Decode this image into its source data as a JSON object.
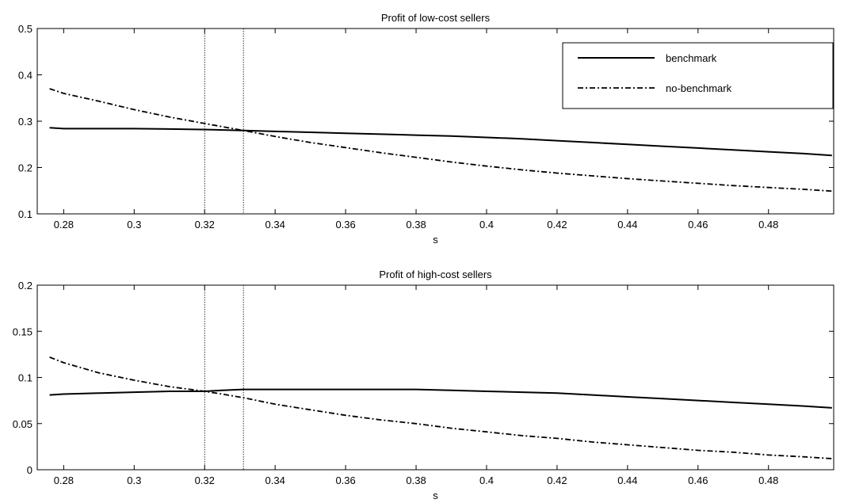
{
  "chart_data": [
    {
      "type": "line",
      "title": "Profit of low-cost sellers",
      "xlabel": "s",
      "ylabel": "",
      "xlim": [
        0.2725,
        0.4985
      ],
      "ylim": [
        0.1,
        0.5
      ],
      "xticks": [
        "0.28",
        "0.3",
        "0.32",
        "0.34",
        "0.36",
        "0.38",
        "0.4",
        "0.42",
        "0.44",
        "0.46",
        "0.48"
      ],
      "yticks": [
        "0.1",
        "0.2",
        "0.3",
        "0.4",
        "0.5"
      ],
      "vlines": [
        0.32,
        0.331
      ],
      "legend": "top-right",
      "series": [
        {
          "name": "benchmark",
          "style": "solid",
          "x": [
            0.276,
            0.28,
            0.29,
            0.3,
            0.31,
            0.32,
            0.331,
            0.34,
            0.35,
            0.36,
            0.37,
            0.38,
            0.39,
            0.4,
            0.41,
            0.42,
            0.43,
            0.44,
            0.45,
            0.46,
            0.47,
            0.48,
            0.49,
            0.498
          ],
          "values": [
            0.286,
            0.284,
            0.284,
            0.284,
            0.283,
            0.282,
            0.28,
            0.278,
            0.276,
            0.274,
            0.272,
            0.27,
            0.268,
            0.265,
            0.262,
            0.258,
            0.254,
            0.25,
            0.246,
            0.242,
            0.238,
            0.234,
            0.23,
            0.226
          ]
        },
        {
          "name": "no-benchmark",
          "style": "dashdot",
          "x": [
            0.276,
            0.28,
            0.29,
            0.3,
            0.31,
            0.32,
            0.331,
            0.34,
            0.35,
            0.36,
            0.37,
            0.38,
            0.39,
            0.4,
            0.41,
            0.42,
            0.43,
            0.44,
            0.45,
            0.46,
            0.47,
            0.48,
            0.49,
            0.498
          ],
          "values": [
            0.37,
            0.36,
            0.343,
            0.325,
            0.309,
            0.295,
            0.28,
            0.267,
            0.254,
            0.243,
            0.232,
            0.222,
            0.212,
            0.203,
            0.195,
            0.188,
            0.182,
            0.176,
            0.171,
            0.166,
            0.161,
            0.157,
            0.153,
            0.149
          ]
        }
      ]
    },
    {
      "type": "line",
      "title": "Profit of high-cost sellers",
      "xlabel": "s",
      "ylabel": "",
      "xlim": [
        0.2725,
        0.4985
      ],
      "ylim": [
        0,
        0.2
      ],
      "xticks": [
        "0.28",
        "0.3",
        "0.32",
        "0.34",
        "0.36",
        "0.38",
        "0.4",
        "0.42",
        "0.44",
        "0.46",
        "0.48"
      ],
      "yticks": [
        "0",
        "0.05",
        "0.1",
        "0.15",
        "0.2"
      ],
      "vlines": [
        0.32,
        0.331
      ],
      "series": [
        {
          "name": "benchmark",
          "style": "solid",
          "x": [
            0.276,
            0.28,
            0.29,
            0.3,
            0.31,
            0.32,
            0.325,
            0.331,
            0.34,
            0.35,
            0.36,
            0.37,
            0.38,
            0.39,
            0.4,
            0.41,
            0.42,
            0.43,
            0.44,
            0.45,
            0.46,
            0.47,
            0.48,
            0.49,
            0.498
          ],
          "values": [
            0.081,
            0.082,
            0.083,
            0.084,
            0.085,
            0.085,
            0.086,
            0.087,
            0.087,
            0.087,
            0.087,
            0.087,
            0.087,
            0.086,
            0.085,
            0.084,
            0.083,
            0.081,
            0.079,
            0.077,
            0.075,
            0.073,
            0.071,
            0.069,
            0.067
          ]
        },
        {
          "name": "no-benchmark",
          "style": "dashdot",
          "x": [
            0.276,
            0.28,
            0.29,
            0.3,
            0.31,
            0.32,
            0.325,
            0.331,
            0.34,
            0.35,
            0.36,
            0.37,
            0.38,
            0.39,
            0.4,
            0.41,
            0.42,
            0.43,
            0.44,
            0.45,
            0.46,
            0.47,
            0.48,
            0.49,
            0.498
          ],
          "values": [
            0.122,
            0.116,
            0.105,
            0.097,
            0.09,
            0.085,
            0.082,
            0.078,
            0.071,
            0.065,
            0.059,
            0.054,
            0.05,
            0.045,
            0.041,
            0.037,
            0.034,
            0.03,
            0.027,
            0.024,
            0.021,
            0.019,
            0.016,
            0.014,
            0.012
          ]
        }
      ]
    }
  ]
}
